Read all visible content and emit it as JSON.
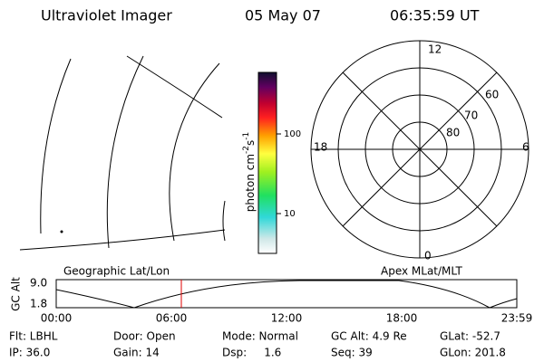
{
  "header": {
    "title": "Ultraviolet Imager",
    "date": "05 May 07",
    "time": "06:35:59 UT"
  },
  "colorbar": {
    "unit_base": "photon cm",
    "unit_exp1": "-2",
    "unit_mid": "s",
    "unit_exp2": "-1",
    "ticks": [
      "100",
      "10"
    ]
  },
  "polar": {
    "mlt_labels": {
      "top": "12",
      "left": "18",
      "right": "6",
      "bottom": "0"
    },
    "lat_labels": [
      "60",
      "70",
      "80"
    ]
  },
  "projections": {
    "left": "Geographic Lat/Lon",
    "right": "Apex MLat/MLT"
  },
  "altitude_plot": {
    "axis_label": "GC Alt",
    "yticks": [
      "9.0",
      "1.8"
    ],
    "xticks": [
      "00:00",
      "06:00",
      "12:00",
      "18:00",
      "23:59"
    ]
  },
  "info": {
    "rows": [
      [
        "Flt: LBHL",
        "Door: Open",
        "Mode: Normal",
        "GC Alt: 4.9 Re",
        "GLat: -52.7"
      ],
      [
        "IP: 36.0",
        "Gain: 14",
        "Dsp:     1.6",
        "Seq: 39",
        "GLon: 201.8"
      ]
    ]
  }
}
